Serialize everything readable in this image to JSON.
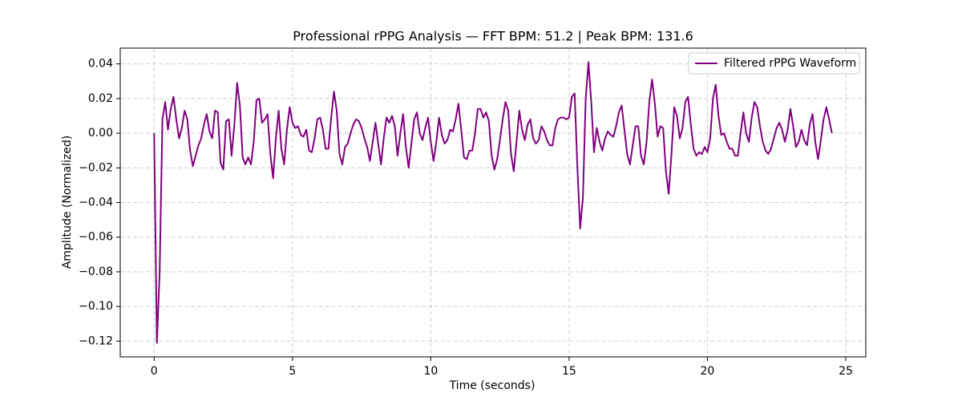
{
  "chart_data": {
    "type": "line",
    "title": "Professional rPPG Analysis — FFT BPM: 51.2 | Peak BPM: 131.6",
    "xlabel": "Time (seconds)",
    "ylabel": "Amplitude (Normalized)",
    "grid": true,
    "legend": "upper right",
    "x": [
      0,
      0.1,
      0.2,
      0.3,
      0.4,
      0.5,
      0.6,
      0.7,
      0.8,
      0.9,
      1,
      1.1,
      1.2,
      1.3,
      1.4,
      1.5,
      1.6,
      1.7,
      1.8,
      1.9,
      2,
      2.1,
      2.2,
      2.3,
      2.4,
      2.5,
      2.6,
      2.7,
      2.8,
      2.9,
      3,
      3.1,
      3.2,
      3.3,
      3.4,
      3.5,
      3.6,
      3.7,
      3.8,
      3.9,
      4,
      4.1,
      4.2,
      4.3,
      4.4,
      4.5,
      4.6,
      4.7,
      4.8,
      4.9,
      5,
      5.1,
      5.2,
      5.3,
      5.4,
      5.5,
      5.6,
      5.7,
      5.8,
      5.9,
      6,
      6.1,
      6.2,
      6.3,
      6.4,
      6.5,
      6.6,
      6.7,
      6.8,
      6.9,
      7,
      7.1,
      7.2,
      7.3,
      7.4,
      7.5,
      7.6,
      7.7,
      7.8,
      7.9,
      8,
      8.1,
      8.2,
      8.3,
      8.4,
      8.5,
      8.6,
      8.7,
      8.8,
      8.9,
      9,
      9.1,
      9.2,
      9.3,
      9.4,
      9.5,
      9.6,
      9.7,
      9.8,
      9.9,
      10,
      10.1,
      10.2,
      10.3,
      10.4,
      10.5,
      10.6,
      10.7,
      10.8,
      10.9,
      11,
      11.1,
      11.2,
      11.3,
      11.4,
      11.5,
      11.6,
      11.7,
      11.8,
      11.9,
      12,
      12.1,
      12.2,
      12.3,
      12.4,
      12.5,
      12.6,
      12.7,
      12.8,
      12.9,
      13,
      13.1,
      13.2,
      13.3,
      13.4,
      13.5,
      13.6,
      13.7,
      13.8,
      13.9,
      14,
      14.1,
      14.2,
      14.3,
      14.4,
      14.5,
      14.6,
      14.7,
      14.8,
      14.9,
      15,
      15.1,
      15.2,
      15.3,
      15.4,
      15.5,
      15.6,
      15.7,
      15.8,
      15.9,
      16,
      16.1,
      16.2,
      16.3,
      16.4,
      16.5,
      16.6,
      16.7,
      16.8,
      16.9,
      17,
      17.1,
      17.2,
      17.3,
      17.4,
      17.5,
      17.6,
      17.7,
      17.8,
      17.9,
      18,
      18.1,
      18.2,
      18.3,
      18.4,
      18.5,
      18.6,
      18.7,
      18.8,
      18.9,
      19,
      19.1,
      19.2,
      19.3,
      19.4,
      19.5,
      19.6,
      19.7,
      19.8,
      19.9,
      20,
      20.1,
      20.2,
      20.3,
      20.4,
      20.5,
      20.6,
      20.7,
      20.8,
      20.9,
      21,
      21.1,
      21.2,
      21.3,
      21.4,
      21.5,
      21.6,
      21.7,
      21.8,
      21.9,
      22,
      22.1,
      22.2,
      22.3,
      22.4,
      22.5,
      22.6,
      22.7,
      22.8,
      22.9,
      23,
      23.1,
      23.2,
      23.3,
      23.4,
      23.5,
      23.6,
      23.7,
      23.8,
      23.9,
      24,
      24.1,
      24.2,
      24.3,
      24.4,
      24.5
    ],
    "series": [
      {
        "name": "Filtered rPPG Waveform",
        "color": "#800080",
        "values": [
          0,
          -0.121,
          -0.08,
          0.008,
          0.018,
          0.002,
          0.014,
          0.021,
          0.008,
          -0.003,
          0.003,
          0.013,
          0.008,
          -0.01,
          -0.019,
          -0.013,
          -0.007,
          -0.003,
          0.005,
          0.011,
          0.001,
          -0.003,
          0.013,
          0.012,
          -0.017,
          -0.021,
          0.007,
          0.008,
          -0.013,
          0.005,
          0.029,
          0.016,
          -0.014,
          -0.018,
          -0.014,
          -0.018,
          -0.005,
          0.019,
          0.02,
          0.006,
          0.008,
          0.011,
          -0.012,
          -0.026,
          -0.003,
          0.013,
          -0.009,
          -0.018,
          0.002,
          0.015,
          0.006,
          0.003,
          0.004,
          -0.001,
          -0.002,
          0.002,
          -0.01,
          -0.011,
          -0.003,
          0.008,
          0.009,
          0.002,
          -0.009,
          -0.009,
          0.009,
          0.024,
          0.013,
          -0.012,
          -0.018,
          -0.008,
          -0.006,
          0,
          0.005,
          0.008,
          0.007,
          0.003,
          -0.003,
          -0.008,
          -0.016,
          -0.005,
          0.006,
          -0.006,
          -0.018,
          -0.003,
          0.009,
          0.006,
          0.01,
          0.004,
          -0.013,
          0,
          0.011,
          -0.008,
          -0.02,
          -0.006,
          0.008,
          0.012,
          0,
          -0.004,
          0.003,
          0.009,
          -0.005,
          -0.016,
          -0.005,
          0.009,
          -0.001,
          -0.006,
          -0.004,
          0.002,
          0.001,
          0.008,
          0.017,
          0.002,
          -0.014,
          -0.015,
          -0.01,
          -0.01,
          0,
          0.014,
          0.014,
          0.009,
          0.012,
          0.007,
          -0.013,
          -0.021,
          -0.015,
          -0.004,
          0.008,
          0.018,
          0.013,
          -0.012,
          -0.022,
          -0.005,
          0.013,
          0.002,
          -0.004,
          0.005,
          0.008,
          -0.003,
          -0.006,
          -0.004,
          0.004,
          0.001,
          -0.004,
          -0.007,
          -0.007,
          0.003,
          0.008,
          0.009,
          0.009,
          0.008,
          0.009,
          0.021,
          0.023,
          -0.02,
          -0.055,
          -0.037,
          0.02,
          0.041,
          0.018,
          -0.011,
          0.003,
          -0.005,
          -0.01,
          -0.003,
          0.001,
          -0.001,
          -0.002,
          0.004,
          0.012,
          0.016,
          0.002,
          -0.012,
          -0.018,
          -0.007,
          0.004,
          0.004,
          -0.013,
          -0.018,
          -0.005,
          0.018,
          0.031,
          0.017,
          -0.002,
          0.004,
          0.003,
          -0.022,
          -0.035,
          -0.012,
          0.015,
          0.01,
          -0.003,
          0.003,
          0.018,
          0.021,
          0.005,
          -0.009,
          -0.013,
          -0.011,
          -0.012,
          -0.008,
          -0.011,
          -0.003,
          0.02,
          0.028,
          0.01,
          -0.001,
          0,
          -0.005,
          -0.009,
          -0.009,
          -0.013,
          -0.013,
          0,
          0.012,
          0,
          -0.005,
          0.009,
          0.018,
          0.015,
          0.004,
          -0.005,
          -0.01,
          -0.012,
          -0.009,
          -0.003,
          0.003,
          0.006,
          0.002,
          -0.005,
          0.002,
          0.014,
          0.004,
          -0.008,
          -0.005,
          0.002,
          -0.004,
          -0.007,
          0.005,
          0.011,
          -0.005,
          -0.015,
          -0.004,
          0.008,
          0.015,
          0.008,
          0
        ]
      }
    ],
    "xlim": [
      -1.225,
      25.725
    ],
    "ylim": [
      -0.1291,
      0.0491
    ],
    "xticks": [
      0,
      5,
      10,
      15,
      20,
      25
    ],
    "yticks": [
      {
        "value": -0.12,
        "label": "−0.12"
      },
      {
        "value": -0.1,
        "label": "−0.10"
      },
      {
        "value": -0.08,
        "label": "−0.08"
      },
      {
        "value": -0.06,
        "label": "−0.06"
      },
      {
        "value": -0.04,
        "label": "−0.04"
      },
      {
        "value": -0.02,
        "label": "−0.02"
      },
      {
        "value": 0,
        "label": "0.00"
      },
      {
        "value": 0.02,
        "label": "0.02"
      },
      {
        "value": 0.04,
        "label": "0.04"
      }
    ]
  }
}
